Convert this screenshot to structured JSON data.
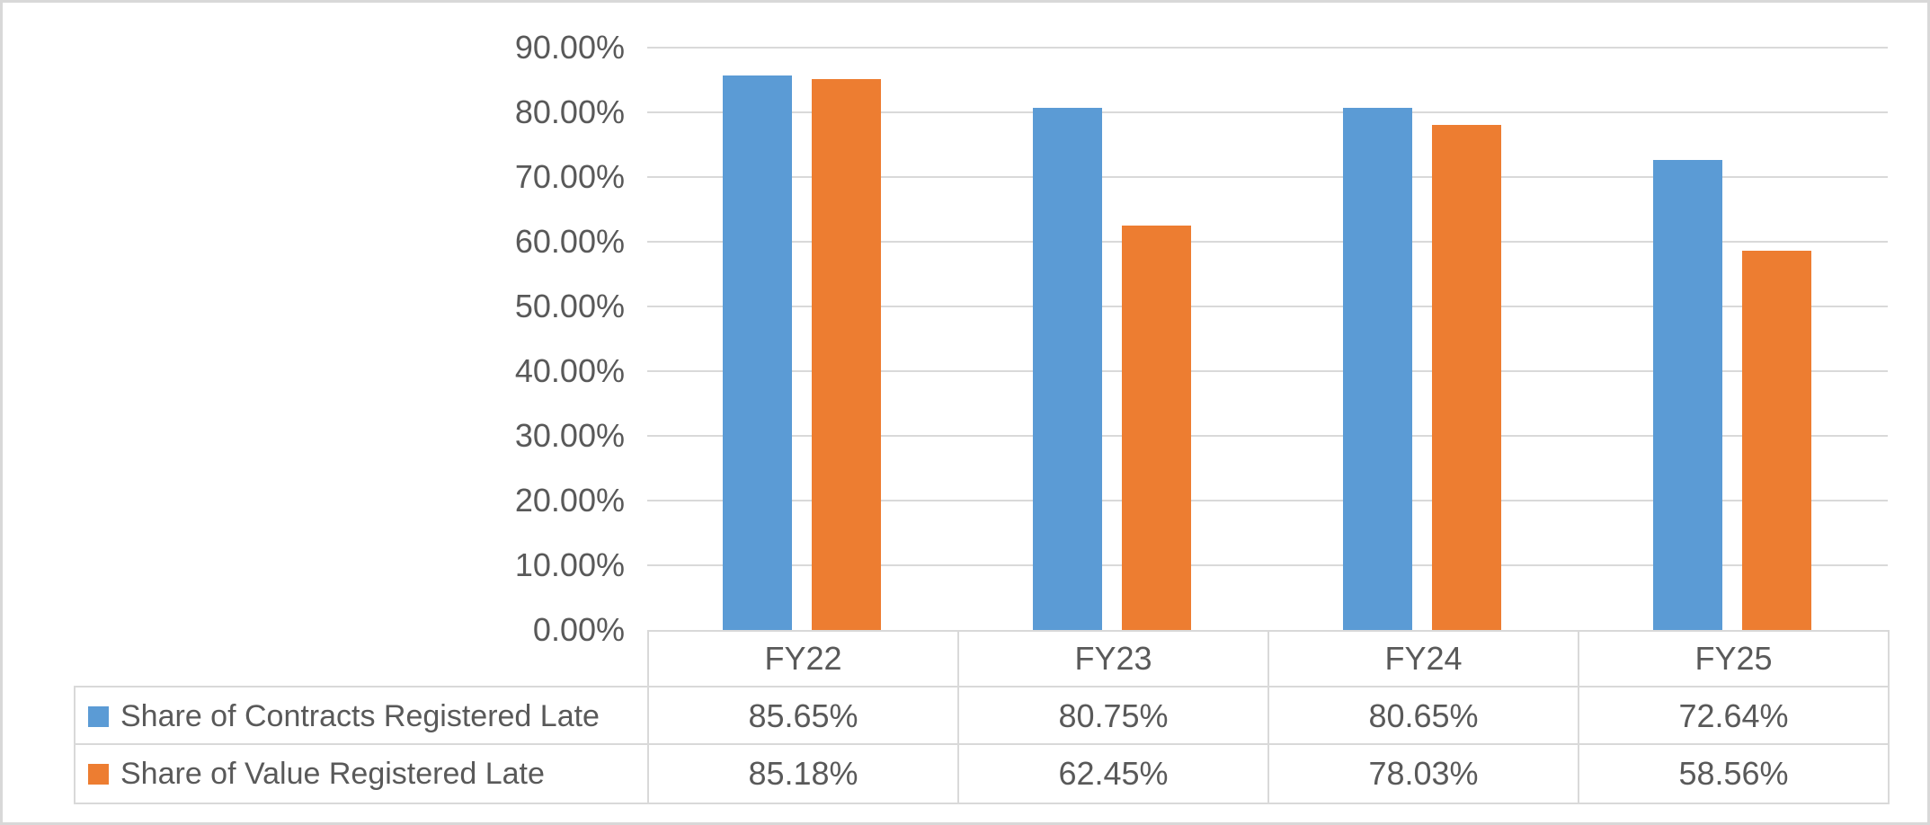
{
  "chart_data": {
    "type": "bar",
    "title": "",
    "xlabel": "",
    "ylabel": "",
    "categories": [
      "FY22",
      "FY23",
      "FY24",
      "FY25"
    ],
    "series": [
      {
        "name": "Share of Contracts Registered Late",
        "color": "#5B9BD5",
        "values": [
          85.65,
          80.75,
          80.65,
          72.64
        ],
        "labels": [
          "85.65%",
          "80.75%",
          "80.65%",
          "72.64%"
        ]
      },
      {
        "name": "Share of Value Registered Late",
        "color": "#ED7D31",
        "values": [
          85.18,
          62.45,
          78.03,
          58.56
        ],
        "labels": [
          "85.18%",
          "62.45%",
          "78.03%",
          "58.56%"
        ]
      }
    ],
    "ylim": [
      0,
      90
    ],
    "ytick_step": 10,
    "ytick_labels": [
      "0.00%",
      "10.00%",
      "20.00%",
      "30.00%",
      "40.00%",
      "50.00%",
      "60.00%",
      "70.00%",
      "80.00%",
      "90.00%"
    ],
    "grid": true,
    "legend_position": "table-left"
  },
  "colors": {
    "series1": "#5B9BD5",
    "series2": "#ED7D31",
    "gridline": "#D9D9D9",
    "table_border": "#D9D9D9",
    "canvas_border": "#D8D8D8",
    "text": "#595959"
  }
}
